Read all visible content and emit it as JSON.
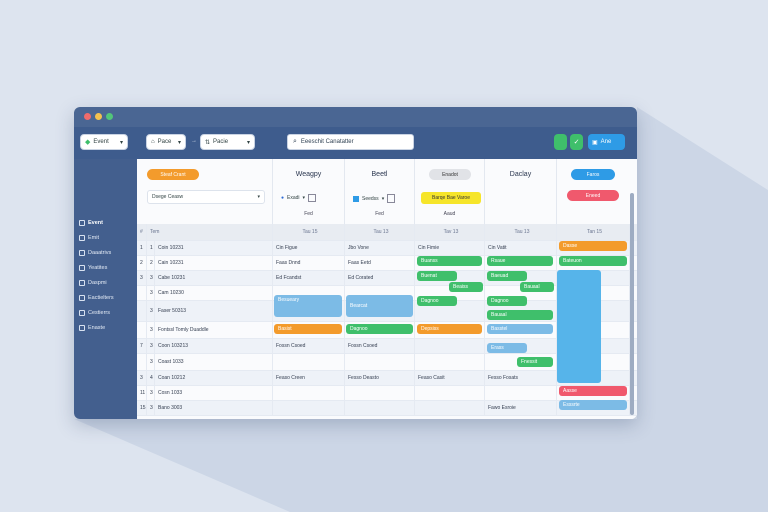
{
  "window": {
    "toolbar": {
      "view_label": "Event",
      "filter_label": "Pace",
      "sort_label": "Pacie",
      "search_text": "Eeeschit Canatatter",
      "action_label": "Ane"
    },
    "sidebar": {
      "items": [
        {
          "label": "Event",
          "icon": "calendar-icon"
        },
        {
          "label": "Emit"
        },
        {
          "label": "Daaatrivs"
        },
        {
          "label": "Yeatites"
        },
        {
          "label": "Daspmi"
        },
        {
          "label": "Eactielters"
        },
        {
          "label": "Cestierrs"
        },
        {
          "label": "Enaste"
        }
      ]
    },
    "header": {
      "left_pill": "Steaf Crant",
      "left_select": "Dsege Ceasw",
      "columns": [
        {
          "title": "Weagpy",
          "control": "Exadi",
          "sub": "Fed"
        },
        {
          "title": "Beetl",
          "control": "Seedss",
          "sub": "Fed"
        },
        {
          "title": "",
          "pill": "Enadot",
          "control": "Barqe Bae Varoe",
          "sub": "Aaud"
        },
        {
          "title": "Daclay"
        },
        {
          "title": "",
          "pill_top": "Faros",
          "pill_bottom": "Eneed"
        }
      ]
    },
    "table": {
      "head": [
        "#",
        "Tem",
        "Tau 15",
        "Tau 13",
        "Tav 13",
        "Tau 13",
        "Tan 15",
        "Tao 15"
      ],
      "rows": [
        {
          "n": "1",
          "a": "1",
          "name": "Coin 10231",
          "c1": "Cin Figue",
          "c2": "Jbo Vone",
          "c3": "Cin Fimie",
          "c4": "Cin Vatit"
        },
        {
          "n": "2",
          "a": "2",
          "name": "Cain 10231",
          "c1": "Faas Dnnd",
          "c2": "Faas Eetd",
          "c3": "",
          "c4": ""
        },
        {
          "n": "3",
          "a": "3",
          "name": "Cabe 10231",
          "c1": "Ed Fcandst",
          "c2": "Ed Corated",
          "c3": "",
          "c4": ""
        },
        {
          "n": "",
          "a": "3",
          "name": "Cam 10230",
          "c1": "",
          "c2": "",
          "c3": "",
          "c4": ""
        },
        {
          "n": "",
          "a": "3",
          "name": "Faser 50313",
          "c1": "",
          "c2": "",
          "c3": "",
          "c4": ""
        },
        {
          "n": "",
          "a": "3",
          "name": "Fontssl Tomly Duaddle",
          "c1": "",
          "c2": "",
          "c3": "",
          "c4": ""
        },
        {
          "n": "7",
          "a": "3",
          "name": "Coon 103213",
          "c1": "Fossn Csoed",
          "c2": "Fossn Csoed",
          "c3": "",
          "c4": ""
        },
        {
          "n": "",
          "a": "3",
          "name": "Coast 1033",
          "c1": "",
          "c2": "",
          "c3": "",
          "c4": ""
        },
        {
          "n": "3",
          "a": "4",
          "name": "Coan 10212",
          "c1": "Feaso Creen",
          "c2": "Fesso Deasto",
          "c3": "Feaso Casit",
          "c4": "Fesso Fosats"
        },
        {
          "n": "11",
          "a": "3",
          "name": "Cosn 1033",
          "c1": "",
          "c2": "",
          "c3": "",
          "c4": ""
        },
        {
          "n": "15",
          "a": "3",
          "name": "Bano 3003",
          "c1": "",
          "c2": "",
          "c3": "",
          "c4": "Fawo Esroie"
        }
      ]
    },
    "bars": {
      "orange_col5_r1": "Dasse",
      "green_col5_r2": "Bateuon",
      "green_col3_r3": "Buanss",
      "green_col4_r3": "Rsaue",
      "green_col3_r4": "Buenat",
      "green_col4_r4": "Baeuad",
      "green_col3_r5": "Beaiss",
      "blue_col1_r5": "Besueary",
      "blue_col2_r5": "Bearcat",
      "green_col4_r5": "Bauaal",
      "orange_col1_r6": "Basist",
      "green_col2_r6": "Dagnoo",
      "orange_col3_r6": "Depsiss",
      "blue_col4_r6": "Basstel",
      "blue_col4_r7": "Erass",
      "green_col4_r8": "Fnessit",
      "red_col5_r10": "Aasse",
      "blue_col5_r11": "Esssrte"
    },
    "colors": {
      "accent_orange": "#f39b2c",
      "accent_green": "#3fbf6b",
      "accent_blue": "#5baee6",
      "accent_red": "#f0596d",
      "header_dark": "#3e5c8d"
    }
  }
}
